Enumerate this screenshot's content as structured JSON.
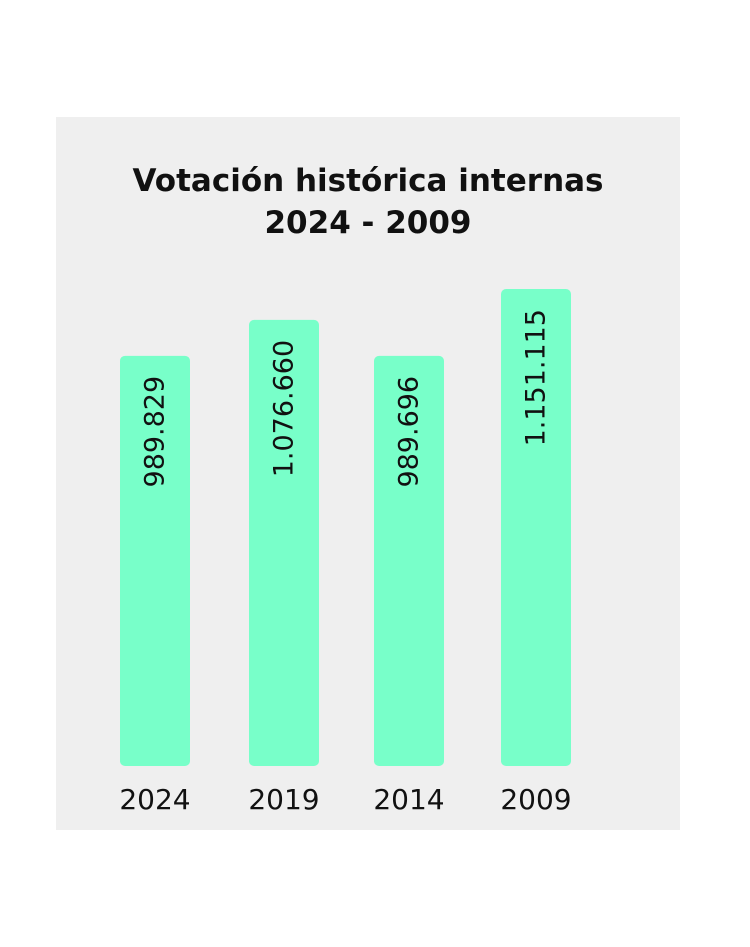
{
  "chart_data": {
    "type": "bar",
    "title": "Votación histórica internas",
    "subtitle": "2024 - 2009",
    "categories": [
      "2024",
      "2019",
      "2014",
      "2009"
    ],
    "values": [
      989829,
      1076660,
      989696,
      1151115
    ],
    "data_labels": [
      "989.829",
      "1.076.660",
      "989.696",
      "1.151.115"
    ],
    "xlabel": "",
    "ylabel": "",
    "ylim": [
      0,
      1151115
    ],
    "grid": false,
    "bar_color": "#78ffc9",
    "background_color": "#efefef"
  }
}
